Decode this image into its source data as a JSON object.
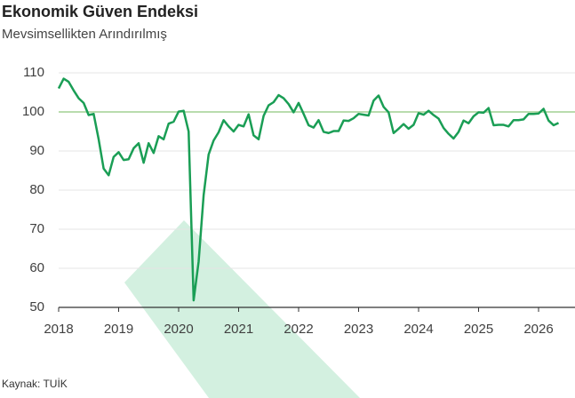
{
  "chart_data": {
    "type": "line",
    "title": "Ekonomik Güven Endeksi",
    "subtitle": "Mevsimsellikten Arındırılmış",
    "source": "Kaynak: TUİK",
    "categories": [
      "2018",
      null,
      null,
      null,
      null,
      null,
      null,
      null,
      null,
      null,
      null,
      null,
      "2019",
      null,
      null,
      null,
      null,
      null,
      null,
      null,
      null,
      null,
      null,
      null,
      "2020",
      null,
      null,
      null,
      null,
      null,
      null,
      null,
      null,
      null,
      null,
      null,
      "2021",
      null,
      null,
      null,
      null,
      null,
      null,
      null,
      null,
      null,
      null,
      null,
      "2022",
      null,
      null,
      null,
      null,
      null,
      null,
      null,
      null,
      null,
      null,
      null,
      "2023",
      null,
      null,
      null,
      null,
      null,
      null,
      null,
      null,
      null,
      null,
      null,
      "2024",
      null,
      null,
      null,
      null,
      null,
      null,
      null,
      null,
      null,
      null,
      null,
      "2025",
      null,
      null,
      null,
      null,
      null,
      null,
      null,
      null,
      null,
      null,
      null,
      "2026",
      null,
      null,
      null,
      null
    ],
    "values": [
      106,
      108.5,
      107.7,
      105.5,
      103.5,
      102.3,
      99.2,
      99.5,
      93,
      85.5,
      83.8,
      88.5,
      89.7,
      87.7,
      87.9,
      90.7,
      92,
      87,
      92,
      89.5,
      93.8,
      93,
      97,
      97.5,
      100.1,
      100.3,
      95,
      51.8,
      61.7,
      78.7,
      89.1,
      92.7,
      94.8,
      97.9,
      96.3,
      95,
      96.7,
      96.3,
      99.4,
      94,
      93,
      99,
      101.7,
      102.5,
      104.3,
      103.5,
      102,
      99.9,
      102.3,
      99.5,
      96.6,
      96,
      97.9,
      94.9,
      94.6,
      95.1,
      95.1,
      97.8,
      97.7,
      98.4,
      99.5,
      99.3,
      99.1,
      102.9,
      104.2,
      101.3,
      99.9,
      94.6,
      95.7,
      96.9,
      95.7,
      96.7,
      99.7,
      99.3,
      100.3,
      99.2,
      98.3,
      95.9,
      94.4,
      93.2,
      94.9,
      97.8,
      97.1,
      98.9,
      99.9,
      99.8,
      101,
      96.6,
      96.7,
      96.7,
      96.3,
      97.9,
      97.9,
      98.1,
      99.5,
      99.5,
      99.6,
      100.8,
      97.8,
      96.6,
      97.2
    ],
    "color": "#1a9e55",
    "reference_line": 100,
    "reference_color": "#b9dcae",
    "ylim": [
      50,
      110
    ],
    "yticks": [
      50,
      60,
      70,
      80,
      90,
      100,
      110
    ],
    "grid": true
  }
}
